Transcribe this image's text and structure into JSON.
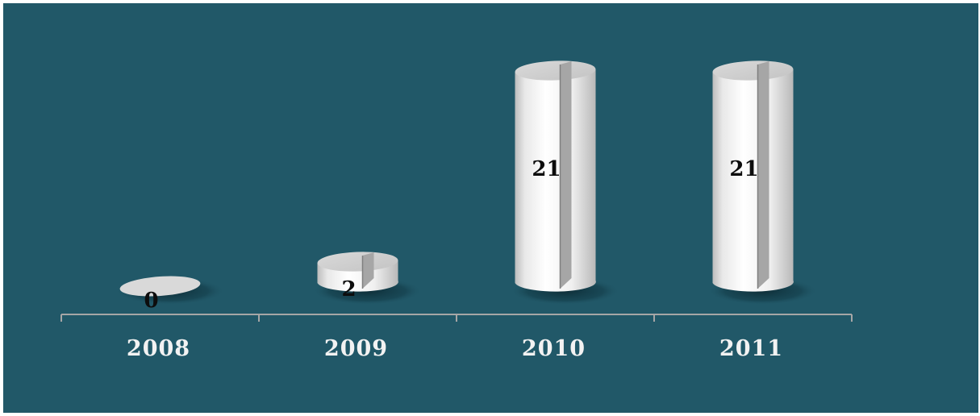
{
  "chart_data": {
    "type": "bar",
    "categories": [
      "2008",
      "2009",
      "2010",
      "2011"
    ],
    "values": [
      0,
      2,
      21,
      21
    ],
    "data_labels": [
      "0",
      "2",
      "21",
      "21"
    ],
    "title": "",
    "xlabel": "",
    "ylabel": "",
    "ylim": [
      0,
      21
    ],
    "grid": false,
    "legend": "none",
    "style": "3d-cylinder",
    "colors": {
      "background": "#215868",
      "bar": "#f2f2f2",
      "bar_shade": "#a6a6a6",
      "axis": "#a6a6a6",
      "tick_label": "#f2f2f2",
      "data_label": "#0d0d0d"
    }
  }
}
